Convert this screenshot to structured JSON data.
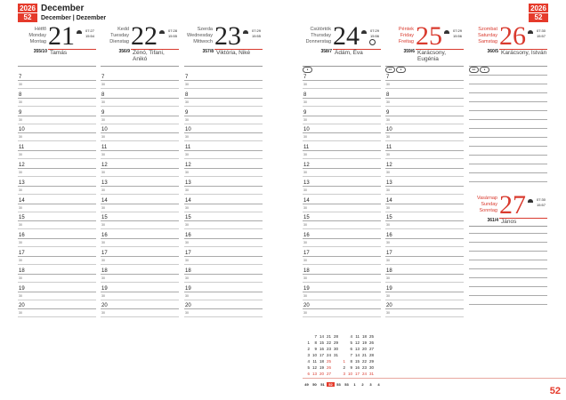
{
  "header": {
    "year": "2026",
    "week": "52",
    "title": "December",
    "subtitle": "December | Dezember"
  },
  "hours": [
    "7",
    "8",
    "9",
    "10",
    "11",
    "12",
    "13",
    "14",
    "15",
    "16",
    "17",
    "18",
    "19",
    "20"
  ],
  "half_label": "30",
  "days": [
    {
      "names": [
        "Hétfő",
        "Monday",
        "Montag"
      ],
      "num": "21",
      "red": false,
      "sunrise": "07:27",
      "sunset": "15:54",
      "doy": "355/10",
      "nameday": "Tamás",
      "moons": []
    },
    {
      "names": [
        "Kedd",
        "Tuesday",
        "Dienstag"
      ],
      "num": "22",
      "red": false,
      "sunrise": "07:28",
      "sunset": "15:55",
      "doy": "356/9",
      "nameday": "Zénó, Tifani, Anikó",
      "moons": []
    },
    {
      "names": [
        "Szerda",
        "Wednesday",
        "Mittwoch"
      ],
      "num": "23",
      "red": false,
      "sunrise": "07:29",
      "sunset": "15:55",
      "doy": "357/8",
      "nameday": "Viktória, Niké",
      "moons": []
    },
    {
      "names": [
        "Csütörtök",
        "Thursday",
        "Donnerstag"
      ],
      "num": "24",
      "red": false,
      "sunrise": "07:29",
      "sunset": "15:56",
      "doy": "358/7",
      "nameday": "Ádám, Éva",
      "moons": [
        "●"
      ]
    },
    {
      "names": [
        "Péntek",
        "Friday",
        "Freitag"
      ],
      "num": "25",
      "red": true,
      "sunrise": "07:29",
      "sunset": "15:56",
      "doy": "359/6",
      "nameday": "Karácsony, Eugénia",
      "moons": [
        "E2",
        "●"
      ]
    },
    {
      "names": [
        "Szombat",
        "Saturday",
        "Samstag"
      ],
      "num": "26",
      "red": true,
      "sunrise": "07:30",
      "sunset": "15:57",
      "doy": "360/5",
      "nameday": "Karácsony, István",
      "moons": [
        "E2",
        "●"
      ]
    },
    {
      "names": [
        "Vasárnap",
        "Sunday",
        "Sonntag"
      ],
      "num": "27",
      "red": true,
      "sunrise": "07:30",
      "sunset": "15:57",
      "doy": "361/4",
      "nameday": "János",
      "moons": []
    }
  ],
  "mini_calendar": {
    "december": [
      [
        "7",
        "14",
        "21",
        "28"
      ],
      [
        "1",
        "8",
        "15",
        "22",
        "29"
      ],
      [
        "2",
        "9",
        "16",
        "23",
        "30"
      ],
      [
        "3",
        "10",
        "17",
        "24",
        "31"
      ],
      [
        "4",
        "11",
        "18",
        "25"
      ],
      [
        "5",
        "12",
        "19",
        "26"
      ],
      [
        "6",
        "13",
        "20",
        "27"
      ]
    ],
    "january": [
      [
        "4",
        "11",
        "18",
        "25"
      ],
      [
        "5",
        "12",
        "19",
        "26"
      ],
      [
        "6",
        "13",
        "20",
        "27"
      ],
      [
        "7",
        "14",
        "21",
        "28"
      ],
      [
        "1",
        "8",
        "15",
        "22",
        "29"
      ],
      [
        "2",
        "9",
        "16",
        "23",
        "30"
      ],
      [
        "3",
        "10",
        "17",
        "24",
        "31"
      ]
    ],
    "red_december": [
      "25",
      "26"
    ],
    "red_january": [
      "1"
    ],
    "weeks": [
      "49",
      "50",
      "51",
      "52",
      "53",
      "53",
      "1",
      "2",
      "3",
      "4"
    ],
    "current_week": "52"
  },
  "page_number": "52",
  "accent": "#e53a2b"
}
